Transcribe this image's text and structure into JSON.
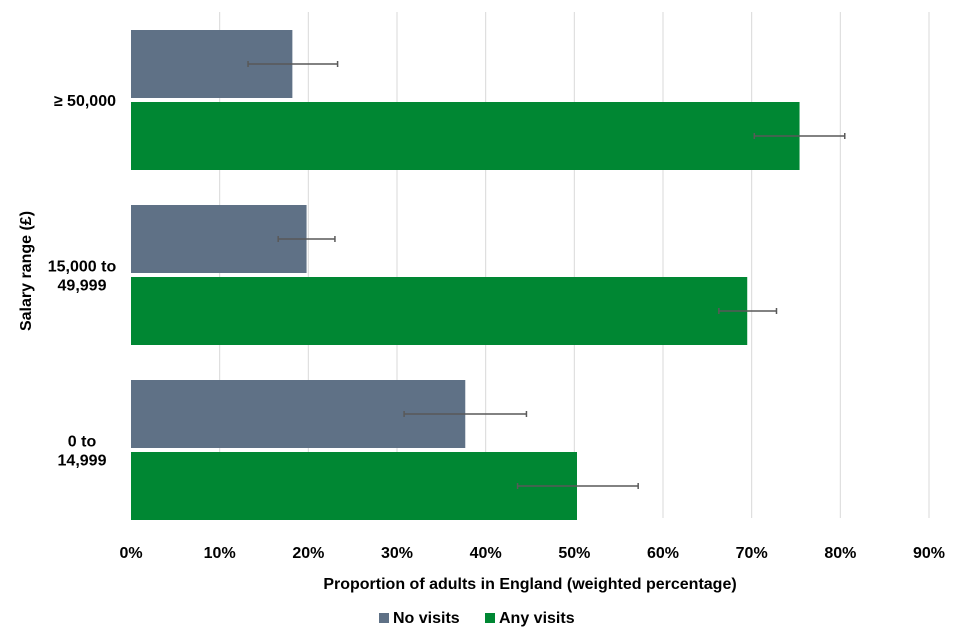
{
  "chart_data": {
    "type": "bar",
    "orientation": "horizontal",
    "categories": [
      "≥ 50,000",
      "15,000 to 49,999",
      "0 to 14,999"
    ],
    "category_lines": [
      [
        "≥ 50,000"
      ],
      [
        "15,000 to",
        "49,999"
      ],
      [
        "0 to",
        "14,999"
      ]
    ],
    "series": [
      {
        "name": "No visits",
        "color": "#5f7186",
        "values": [
          18.2,
          19.8,
          37.7
        ],
        "error_low": [
          13.2,
          16.6,
          30.8
        ],
        "error_high": [
          23.3,
          23.0,
          44.6
        ]
      },
      {
        "name": "Any visits",
        "color": "#008733",
        "values": [
          75.4,
          69.5,
          50.3
        ],
        "error_low": [
          70.3,
          66.3,
          43.6
        ],
        "error_high": [
          80.5,
          72.8,
          57.2
        ]
      }
    ],
    "xlim": [
      0,
      90
    ],
    "x_ticks": [
      0,
      10,
      20,
      30,
      40,
      50,
      60,
      70,
      80,
      90
    ],
    "x_tick_labels": [
      "0%",
      "10%",
      "20%",
      "30%",
      "40%",
      "50%",
      "60%",
      "70%",
      "80%",
      "90%"
    ],
    "xlabel": "Proportion of adults in England (weighted percentage)",
    "ylabel": "Salary range (£)",
    "grid": "vertical",
    "legend_position": "bottom",
    "gridline_color": "#d9d9d9",
    "errorbar_color": "#595959"
  }
}
